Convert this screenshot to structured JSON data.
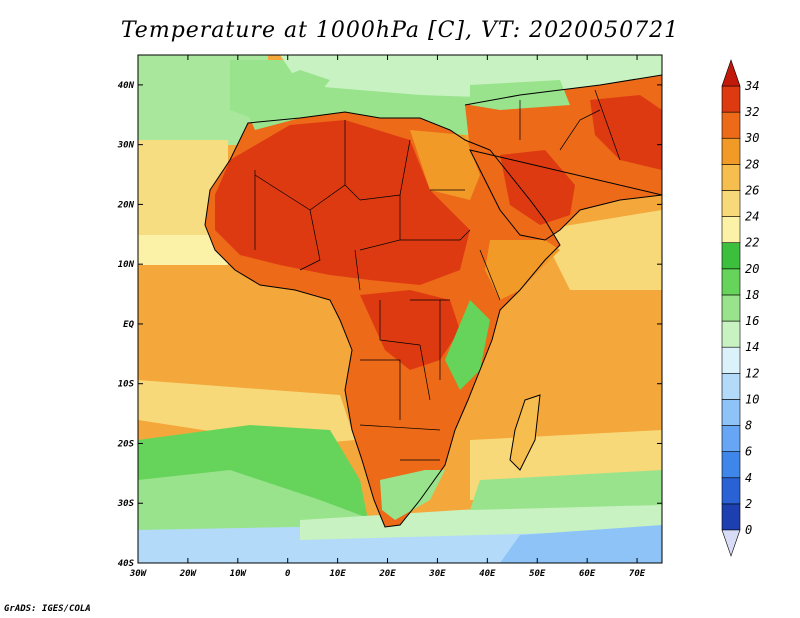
{
  "title": "Temperature at 1000hPa [C], VT: 2020050721",
  "credit": "GrADS: IGES/COLA",
  "map": {
    "lon_range": [
      -30,
      75
    ],
    "lat_range": [
      -40,
      45
    ],
    "lon_ticks": [
      {
        "value": -30,
        "label": "30W"
      },
      {
        "value": -20,
        "label": "20W"
      },
      {
        "value": -10,
        "label": "10W"
      },
      {
        "value": 0,
        "label": "0"
      },
      {
        "value": 10,
        "label": "10E"
      },
      {
        "value": 20,
        "label": "20E"
      },
      {
        "value": 30,
        "label": "30E"
      },
      {
        "value": 40,
        "label": "40E"
      },
      {
        "value": 50,
        "label": "50E"
      },
      {
        "value": 60,
        "label": "60E"
      },
      {
        "value": 70,
        "label": "70E"
      }
    ],
    "lat_ticks": [
      {
        "value": 40,
        "label": "40N"
      },
      {
        "value": 30,
        "label": "30N"
      },
      {
        "value": 20,
        "label": "20N"
      },
      {
        "value": 10,
        "label": "10N"
      },
      {
        "value": 0,
        "label": "EQ"
      },
      {
        "value": -10,
        "label": "10S"
      },
      {
        "value": -20,
        "label": "20S"
      },
      {
        "value": -30,
        "label": "30S"
      },
      {
        "value": -40,
        "label": "40S"
      }
    ],
    "ocean_color": "#f4a73a"
  },
  "colorbar": {
    "levels": [
      "0",
      "2",
      "4",
      "6",
      "8",
      "10",
      "12",
      "14",
      "16",
      "18",
      "20",
      "22",
      "24",
      "26",
      "28",
      "30",
      "32",
      "34"
    ],
    "colors": [
      "#0c1b7a",
      "#1d3fb0",
      "#2a62d6",
      "#3f86ea",
      "#66a6f4",
      "#8ec3f8",
      "#b3daf9",
      "#dcf2fb",
      "#c8f2c1",
      "#99e38c",
      "#66d45a",
      "#3cbf3c",
      "#fbf2a8",
      "#f8d97a",
      "#f6bd4f",
      "#f29a27",
      "#ec6a18",
      "#de3a12",
      "#c91d0c"
    ],
    "under_color": "#d9dcf7",
    "over_color": "#c21a0a"
  }
}
